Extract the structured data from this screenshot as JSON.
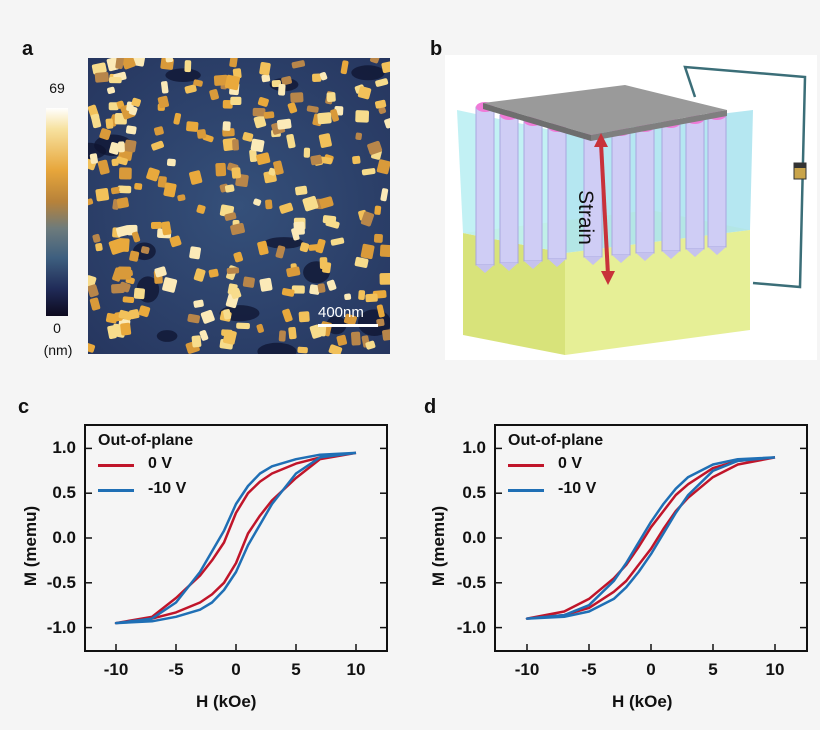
{
  "panel_a": {
    "letter": "a",
    "colorbar_max": "69",
    "colorbar_min": "0",
    "colorbar_unit": "(nm)",
    "scalebar_label": "400nm"
  },
  "panel_b": {
    "letter": "b",
    "strain_label": "Strain"
  },
  "colors": {
    "series_0V": "#c0152a",
    "series_m10V": "#1f6fb5"
  },
  "chart_data": [
    {
      "id": "c",
      "type": "line",
      "panel_letter": "c",
      "xlabel": "H (kOe)",
      "ylabel": "M (memu)",
      "xlim": [
        -12.5,
        12.5
      ],
      "ylim": [
        -1.25,
        1.25
      ],
      "xticks": [
        -10,
        -5,
        0,
        5,
        10
      ],
      "yticks": [
        1.0,
        0.5,
        0.0,
        -0.5,
        -1.0
      ],
      "ytick_labels": [
        "1.0",
        "0.5",
        "0.0",
        "-0.5",
        "-1.0"
      ],
      "legend_title": "Out-of-plane",
      "series": [
        {
          "name": "0 V",
          "color": "#c0152a",
          "x": [
            10,
            7,
            5,
            3,
            2,
            1,
            0,
            -1,
            -2,
            -3,
            -5,
            -7,
            -10,
            -7,
            -5,
            -3,
            -2,
            -1,
            0,
            1,
            2,
            3,
            5,
            7,
            10
          ],
          "y": [
            0.95,
            0.9,
            0.83,
            0.72,
            0.63,
            0.5,
            0.28,
            -0.05,
            -0.25,
            -0.42,
            -0.67,
            -0.88,
            -0.95,
            -0.9,
            -0.83,
            -0.72,
            -0.63,
            -0.5,
            -0.28,
            0.05,
            0.25,
            0.42,
            0.67,
            0.88,
            0.95
          ]
        },
        {
          "name": "-10 V",
          "color": "#1f6fb5",
          "x": [
            10,
            7,
            5,
            3,
            2,
            1,
            0,
            -1,
            -2,
            -3,
            -5,
            -7,
            -10,
            -7,
            -5,
            -3,
            -2,
            -1,
            0,
            1,
            2,
            3,
            5,
            7,
            10
          ],
          "y": [
            0.95,
            0.93,
            0.88,
            0.8,
            0.72,
            0.58,
            0.38,
            0.08,
            -0.15,
            -0.38,
            -0.72,
            -0.9,
            -0.95,
            -0.93,
            -0.88,
            -0.8,
            -0.72,
            -0.58,
            -0.38,
            -0.08,
            0.15,
            0.38,
            0.72,
            0.9,
            0.95
          ]
        }
      ]
    },
    {
      "id": "d",
      "type": "line",
      "panel_letter": "d",
      "xlabel": "H (kOe)",
      "ylabel": "M (memu)",
      "xlim": [
        -12.5,
        12.5
      ],
      "ylim": [
        -1.25,
        1.25
      ],
      "xticks": [
        -10,
        -5,
        0,
        5,
        10
      ],
      "yticks": [
        1.0,
        0.5,
        0.0,
        -0.5,
        -1.0
      ],
      "ytick_labels": [
        "1.0",
        "0.5",
        "0.0",
        "-0.5",
        "-1.0"
      ],
      "legend_title": "Out-of-plane",
      "series": [
        {
          "name": "0 V",
          "color": "#c0152a",
          "x": [
            10,
            7,
            5,
            3,
            2,
            1,
            0,
            -1,
            -2,
            -3,
            -5,
            -7,
            -10,
            -7,
            -5,
            -3,
            -2,
            -1,
            0,
            1,
            2,
            3,
            5,
            7,
            10
          ],
          "y": [
            0.9,
            0.86,
            0.78,
            0.6,
            0.48,
            0.3,
            0.12,
            -0.1,
            -0.3,
            -0.45,
            -0.68,
            -0.82,
            -0.9,
            -0.86,
            -0.78,
            -0.6,
            -0.48,
            -0.3,
            -0.12,
            0.1,
            0.3,
            0.45,
            0.68,
            0.82,
            0.9
          ]
        },
        {
          "name": "-10 V",
          "color": "#1f6fb5",
          "x": [
            10,
            7,
            5,
            3,
            2,
            1,
            0,
            -1,
            -2,
            -3,
            -5,
            -7,
            -10,
            -7,
            -5,
            -3,
            -2,
            -1,
            0,
            1,
            2,
            3,
            5,
            7,
            10
          ],
          "y": [
            0.9,
            0.88,
            0.82,
            0.68,
            0.55,
            0.38,
            0.18,
            -0.05,
            -0.28,
            -0.48,
            -0.75,
            -0.86,
            -0.9,
            -0.88,
            -0.82,
            -0.68,
            -0.55,
            -0.38,
            -0.18,
            0.05,
            0.28,
            0.48,
            0.75,
            0.86,
            0.9
          ]
        }
      ]
    }
  ]
}
